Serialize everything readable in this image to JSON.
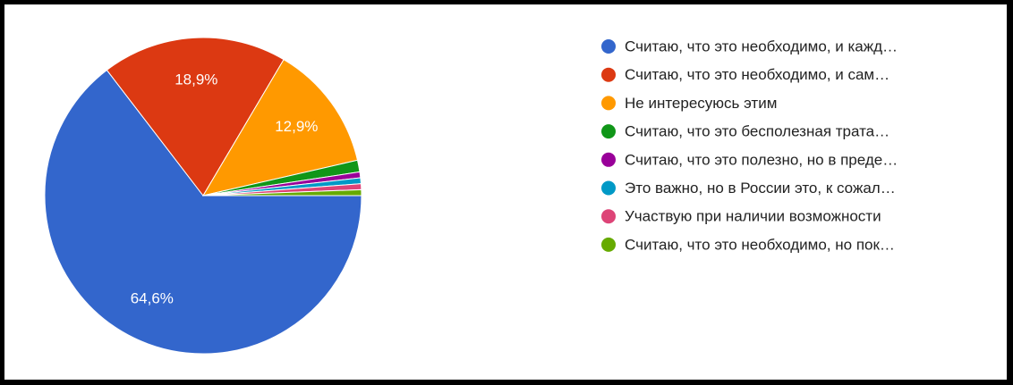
{
  "chart_data": {
    "type": "pie",
    "categories": [
      "Считаю, что это необходимо, и кажд…",
      "Считаю, что это необходимо, и сам…",
      "Не интересуюсь этим",
      "Считаю, что это бесполезная трата…",
      "Считаю, что это полезно, но в преде…",
      "Это важно, но в России это, к сожал…",
      "Участвую при наличии возможности",
      "Считаю, что это необходимо, но пок…"
    ],
    "values": [
      64.6,
      18.9,
      12.9,
      1.2,
      0.6,
      0.6,
      0.6,
      0.6
    ],
    "value_labels": [
      "64,6%",
      "18,9%",
      "12,9%",
      null,
      null,
      null,
      null,
      null
    ],
    "colors": [
      "#3366cc",
      "#dc3912",
      "#ff9900",
      "#109618",
      "#990099",
      "#0099c6",
      "#dd4477",
      "#66aa00"
    ],
    "legend": "right"
  }
}
